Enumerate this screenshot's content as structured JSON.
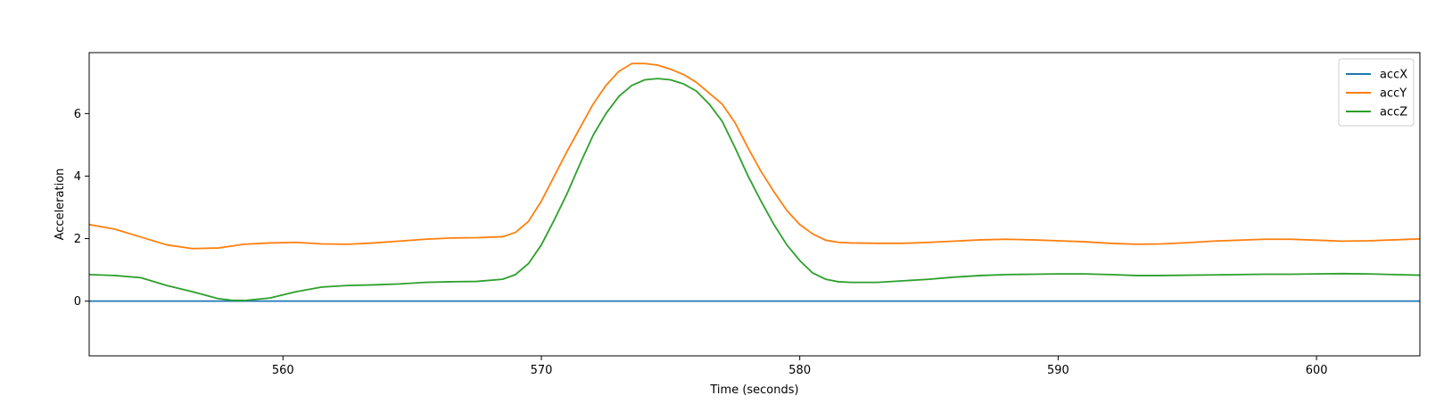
{
  "chart_data": {
    "type": "line",
    "title": "",
    "xlabel": "Time (seconds)",
    "ylabel": "Acceleration",
    "xlim": [
      552.5,
      604.0
    ],
    "ylim": [
      -1.75,
      7.95
    ],
    "xticks": [
      560,
      570,
      580,
      590,
      600
    ],
    "yticks": [
      0,
      2,
      4,
      6
    ],
    "grid": false,
    "legend_position": "top-right",
    "colors": {
      "accX": "#1f77b4",
      "accY": "#ff7f0e",
      "accZ": "#2ca02c"
    },
    "series": [
      {
        "name": "accX",
        "x": [
          552.5,
          604.0
        ],
        "y": [
          0.0,
          0.0
        ]
      },
      {
        "name": "accY",
        "x": [
          552.5,
          553.5,
          554.5,
          555.5,
          556.5,
          557.5,
          558.5,
          559.5,
          560.5,
          561.5,
          562.5,
          563.5,
          564.5,
          565.5,
          566.5,
          567.5,
          568.5,
          569.0,
          569.5,
          570.0,
          570.5,
          571.0,
          571.5,
          572.0,
          572.5,
          573.0,
          573.5,
          574.0,
          574.5,
          575.0,
          575.5,
          576.0,
          576.5,
          577.0,
          577.5,
          578.0,
          578.5,
          579.0,
          579.5,
          580.0,
          580.5,
          581.0,
          581.5,
          582.0,
          583.0,
          584.0,
          585.0,
          586.0,
          587.0,
          588.0,
          589.0,
          590.0,
          591.0,
          592.0,
          593.0,
          594.0,
          595.0,
          596.0,
          597.0,
          598.0,
          599.0,
          600.0,
          601.0,
          602.0,
          603.0,
          604.0
        ],
        "y": [
          2.45,
          2.3,
          2.05,
          1.8,
          1.68,
          1.7,
          1.82,
          1.86,
          1.88,
          1.83,
          1.82,
          1.86,
          1.92,
          1.98,
          2.02,
          2.03,
          2.06,
          2.2,
          2.55,
          3.2,
          4.0,
          4.8,
          5.55,
          6.3,
          6.9,
          7.35,
          7.6,
          7.6,
          7.55,
          7.42,
          7.25,
          7.0,
          6.65,
          6.3,
          5.7,
          4.9,
          4.15,
          3.5,
          2.9,
          2.45,
          2.15,
          1.95,
          1.88,
          1.86,
          1.85,
          1.85,
          1.88,
          1.92,
          1.96,
          1.98,
          1.96,
          1.93,
          1.9,
          1.85,
          1.82,
          1.83,
          1.87,
          1.92,
          1.95,
          1.98,
          1.98,
          1.95,
          1.92,
          1.93,
          1.96,
          1.99
        ]
      },
      {
        "name": "accZ",
        "x": [
          552.5,
          553.5,
          554.5,
          555.5,
          556.5,
          557.5,
          558.0,
          558.5,
          559.5,
          560.5,
          561.5,
          562.5,
          563.5,
          564.5,
          565.5,
          566.5,
          567.5,
          568.5,
          569.0,
          569.5,
          570.0,
          570.5,
          571.0,
          571.5,
          572.0,
          572.5,
          573.0,
          573.5,
          574.0,
          574.5,
          575.0,
          575.5,
          576.0,
          576.5,
          577.0,
          577.5,
          578.0,
          578.5,
          579.0,
          579.5,
          580.0,
          580.5,
          581.0,
          581.5,
          582.0,
          583.0,
          584.0,
          585.0,
          586.0,
          587.0,
          588.0,
          589.0,
          590.0,
          591.0,
          592.0,
          593.0,
          594.0,
          595.0,
          596.0,
          597.0,
          598.0,
          599.0,
          600.0,
          601.0,
          602.0,
          603.0,
          604.0
        ],
        "y": [
          0.85,
          0.82,
          0.75,
          0.5,
          0.3,
          0.08,
          0.03,
          0.02,
          0.1,
          0.3,
          0.45,
          0.5,
          0.52,
          0.55,
          0.6,
          0.62,
          0.63,
          0.7,
          0.85,
          1.2,
          1.8,
          2.6,
          3.45,
          4.4,
          5.3,
          6.0,
          6.55,
          6.9,
          7.08,
          7.12,
          7.08,
          6.95,
          6.72,
          6.3,
          5.75,
          4.9,
          4.0,
          3.2,
          2.45,
          1.8,
          1.3,
          0.9,
          0.7,
          0.62,
          0.6,
          0.6,
          0.65,
          0.7,
          0.77,
          0.82,
          0.85,
          0.86,
          0.87,
          0.87,
          0.85,
          0.82,
          0.82,
          0.83,
          0.84,
          0.85,
          0.86,
          0.86,
          0.87,
          0.88,
          0.87,
          0.85,
          0.83
        ]
      }
    ]
  }
}
